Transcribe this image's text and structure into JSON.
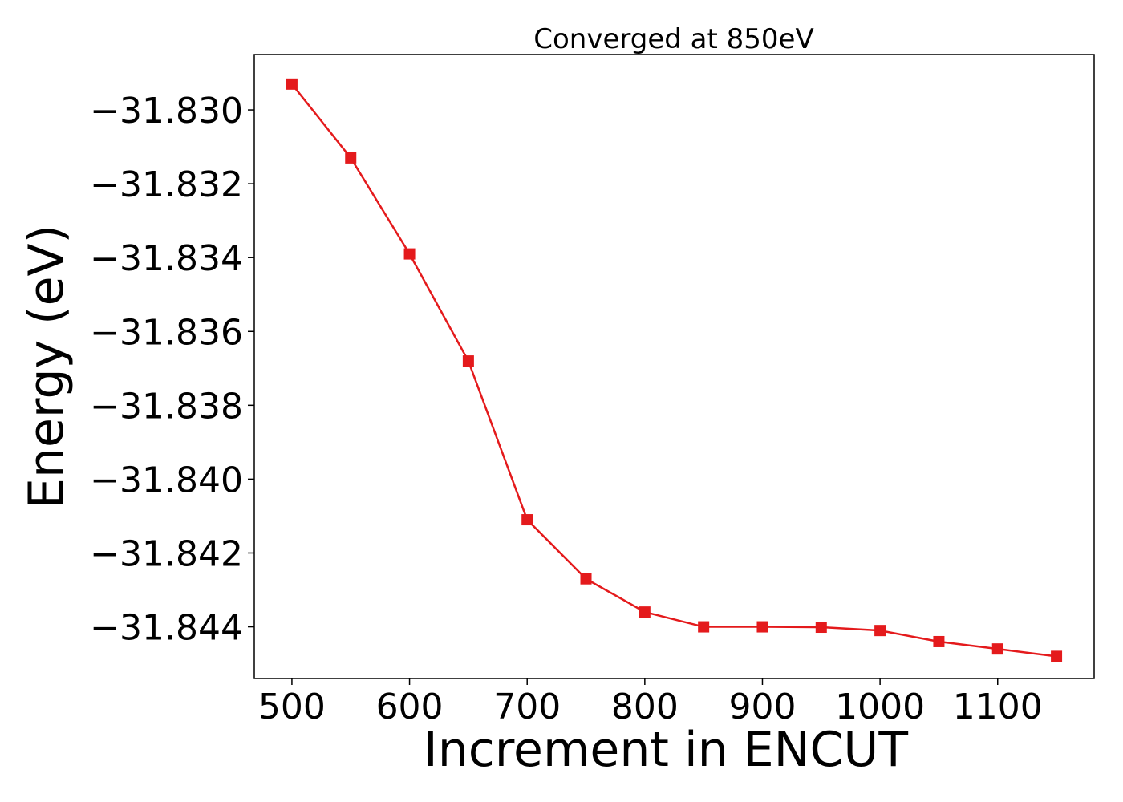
{
  "chart_data": {
    "type": "line",
    "title": "Converged at 850eV",
    "xlabel": "Increment in ENCUT",
    "ylabel": "Energy (eV)",
    "xlim": [
      468,
      1182
    ],
    "ylim": [
      -31.8454,
      -31.8285
    ],
    "x_ticks": [
      500,
      600,
      700,
      800,
      900,
      1000,
      1100
    ],
    "x_tick_labels": [
      "500",
      "600",
      "700",
      "800",
      "900",
      "1000",
      "1100"
    ],
    "y_ticks": [
      -31.83,
      -31.832,
      -31.834,
      -31.836,
      -31.838,
      -31.84,
      -31.842,
      -31.844
    ],
    "y_tick_labels": [
      "−31.830",
      "−31.832",
      "−31.834",
      "−31.836",
      "−31.838",
      "−31.840",
      "−31.842",
      "−31.844"
    ],
    "grid": false,
    "series": [
      {
        "color": "#e41a1c",
        "marker": "square",
        "x": [
          500,
          550,
          600,
          650,
          700,
          750,
          800,
          850,
          900,
          950,
          1000,
          1050,
          1100,
          1150
        ],
        "y": [
          -31.8293,
          -31.8313,
          -31.8339,
          -31.8368,
          -31.8411,
          -31.8427,
          -31.8436,
          -31.844,
          -31.844,
          -31.84401,
          -31.8441,
          -31.8444,
          -31.8446,
          -31.8448
        ]
      }
    ]
  }
}
